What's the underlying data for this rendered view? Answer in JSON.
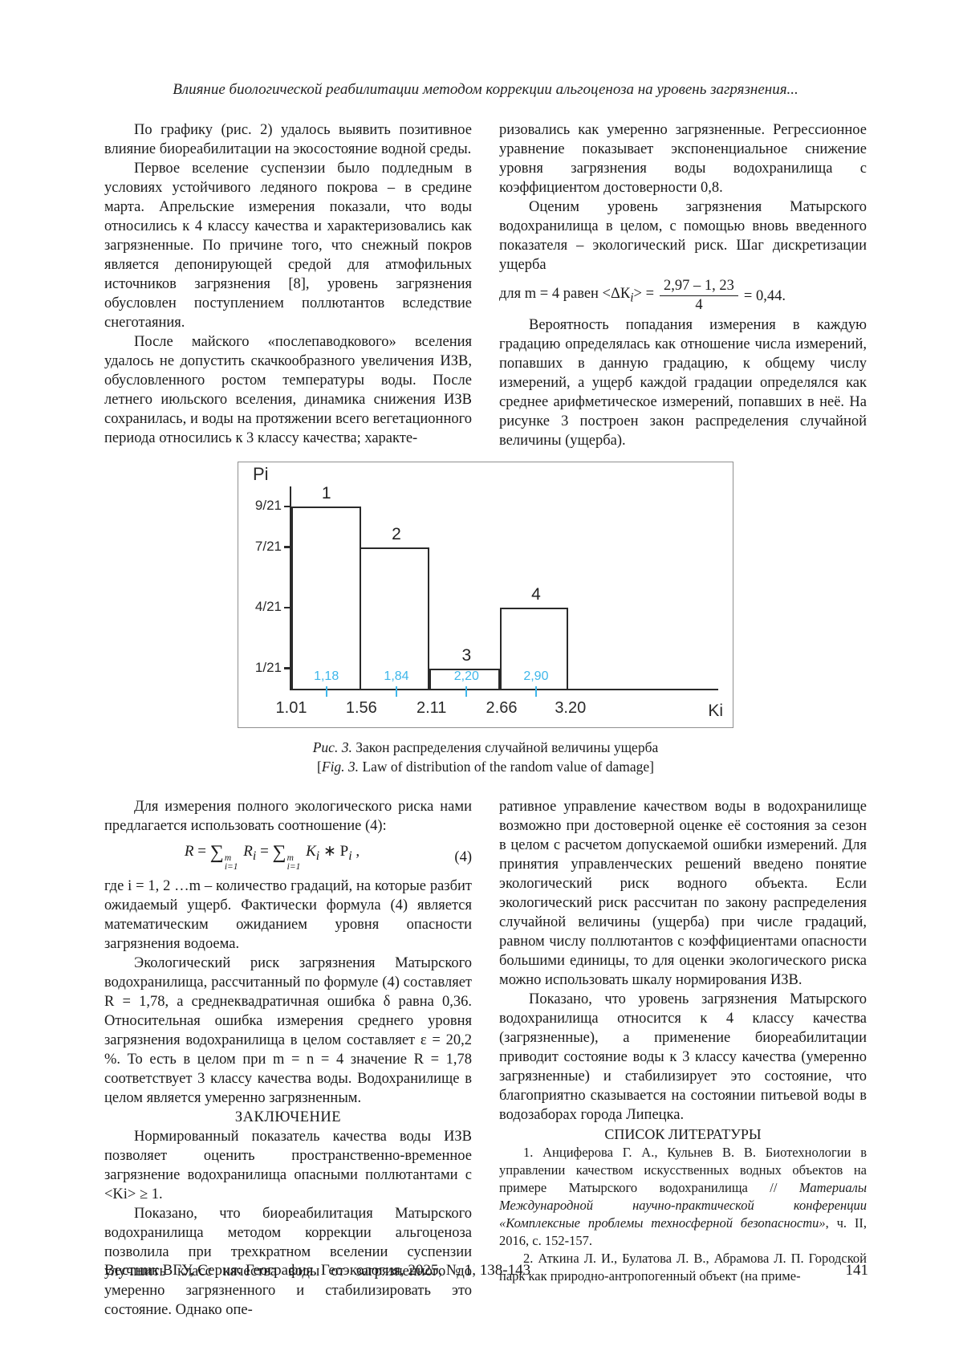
{
  "page": {
    "running_head": "Влияние биологической реабилитации методом коррекции альгоценоза на уровень загрязнения...",
    "footer_left": "Вестник ВГУ, Серия: География. Геоэкология, 2025, № 1, 138-143",
    "page_number": "141"
  },
  "top": {
    "left": [
      "По графику (рис. 2) удалось выявить позитивное влияние биореабилитации на экосостояние водной среды.",
      "Первое вселение суспензии было подледным в условиях устойчивого ледяного покрова – в средине марта. Апрельские измерения показали, что воды относились к 4 классу качества и характеризовались как загрязненные. По причине того, что снежный покров является депонирующей средой для атмофильных источников загрязнения [8], уровень загрязнения обусловлен поступлением поллютантов вследствие снеготаяния.",
      "После майского «послепаводкового» вселения удалось не допустить скачкообразного увеличения ИЗВ, обусловленного ростом температуры воды. После летнего июльского вселения, динамика снижения ИЗВ сохранилась, и воды на протяжении всего вегетационного периода относились к 3 классу качества; характе-"
    ],
    "right": [
      "ризовались как умеренно загрязненные. Регрессионное уравнение показывает экспоненциальное снижение уровня загрязнения воды водохранилища с коэффициентом достоверности 0,8.",
      "Оценим уровень загрязнения Матырского водохранилища в целом, с помощью вновь введенного показателя – экологический риск. Шаг дискретизации ущерба",
      "Вероятность попадания измерения в каждую градацию определялась как отношение числа измерений, попавших в данную градацию, к общему числу измерений, а ущерб каждой градации определялся как среднее арифметическое измерений, попавших в неё. На рисунке 3 построен закон распределения случайной величины (ущерба)."
    ]
  },
  "formulas": {
    "disc": {
      "prefix": "для m = 4 равен <ΔК",
      "isub": "i",
      "mid": "> =",
      "numerator": "2,97 – 1, 23",
      "denominator": "4",
      "result": "= 0,44."
    },
    "risk": {
      "R": "R",
      "eq": "=",
      "sigma": "∑",
      "sup": "m",
      "sub": "i=1",
      "isub": "i",
      "K": "K",
      "P": "P",
      "star": "∗",
      "comma": " ,",
      "tag": "(4)"
    }
  },
  "chart_data": {
    "type": "bar",
    "title": "Закон распределения случайной величины ущерба",
    "ylabel": "Pi",
    "xlabel": "Ki",
    "y_unit_denominator": 21,
    "y_axis_max_numerator": 10,
    "y_ticks": [
      {
        "label": "9/21",
        "n": 9
      },
      {
        "label": "7/21",
        "n": 7
      },
      {
        "label": "4/21",
        "n": 4
      },
      {
        "label": "1/21",
        "n": 1
      }
    ],
    "x_range": [
      1.01,
      4.36
    ],
    "x_ticks": [
      "1.01",
      "1.56",
      "2.11",
      "2.66",
      "3.20"
    ],
    "x_tick_values": [
      1.01,
      1.56,
      2.11,
      2.66,
      3.2
    ],
    "bars": [
      {
        "index": "1",
        "from": 1.01,
        "to": 1.56,
        "p_label": "9/21",
        "p_n": 9,
        "mean_label": "1,18"
      },
      {
        "index": "2",
        "from": 1.56,
        "to": 2.11,
        "p_label": "7/21",
        "p_n": 7,
        "mean_label": "1,84"
      },
      {
        "index": "3",
        "from": 2.11,
        "to": 2.66,
        "p_label": "1/21",
        "p_n": 1,
        "mean_label": "2,20"
      },
      {
        "index": "4",
        "from": 2.66,
        "to": 3.2,
        "p_label": "4/21",
        "p_n": 4,
        "mean_label": "2,90"
      }
    ],
    "legend": [],
    "grid": false,
    "colors": {
      "axis": "#2a2a2a",
      "bar_border": "#2a2a2a",
      "mean_labels": "#3db6ea"
    }
  },
  "figure_caption": {
    "ru_label": "Рис. 3.",
    "ru_text": " Закон распределения случайной величины ущерба",
    "en_pre": "[",
    "en_label": "Fig. 3.",
    "en_text": " Law of distribution of the random value of damage]"
  },
  "bottom": {
    "left": [
      "Для измерения полного экологического риска нами предлагается использовать соотношение (4):",
      "где i = 1, 2 …m – количество градаций, на которые разбит ожидаемый ущерб. Фактически формула (4) является математическим ожиданием уровня опасности загрязнения водоема.",
      "Экологический риск загрязнения Матырского водохранилища, рассчитанный по формуле (4) составляет R = 1,78, а среднеквадратичная ошибка δ равна 0,36. Относительная ошибка измерения среднего уровня загрязнения водохранилища в целом составляет ε = 20,2 %. То есть в целом при m = n = 4 значение R = 1,78 соответствует 3 классу качества воды. Водохранилище в целом является умеренно загрязненным.",
      "Нормированный показатель качества воды ИЗВ позволяет оценить пространственно-временное загрязнение водохранилища опасными поллютантами с <Ki> ≥ 1.",
      "Показано, что биореабилитация Матырского водохранилища методом коррекции альгоценоза позволила при трехкратном вселении суспензии улучшить класс качества воды от загрязненного до умеренно загрязненного и стабилизировать это состояние. Однако опе-"
    ],
    "conclusion_heading": "ЗАКЛЮЧЕНИЕ",
    "right": [
      "ративное управление качеством воды в водохранилище возможно при достоверной оценке её состояния за сезон в целом с расчетом допускаемой ошибки измерений. Для принятия управленческих решений введено понятие экологический риск водного объекта. Если экологический риск рассчитан по закону распределения случайной величины (ущерба) при числе градаций, равном числу поллютантов с коэффициентами опасности большими единицы, то для оценки экологического риска можно использовать шкалу нормирования ИЗВ.",
      "Показано, что уровень загрязнения Матырского водохранилища относится к 4 классу качества (загрязненные), а применение биореабилитации приводит состояние воды к 3 классу качества (умеренно загрязненные) и стабилизирует это состояние, что благоприятно сказывается на состоянии питьевой воды в водозаборах города Липецка.",
      "СПИСОК ЛИТЕРАТУРЫ"
    ],
    "references": {
      "r1_pre": "1. Анциферова Г. А., Кульнев В. В. Биотехнологии в управлении качеством искусственных водных объектов на примере Матырского водохранилища // ",
      "r1_italic": "Материалы Международной научно-практической конференции «Комплексные проблемы техносферной безопасности»",
      "r1_post": ", ч. II, 2016, с. 152-157.",
      "r2": "2. Аткина Л. И.,  Булатова Л. В.,  Абрамова Л. П.  Городской парк как природно-антропогенный объект (на приме-"
    }
  }
}
